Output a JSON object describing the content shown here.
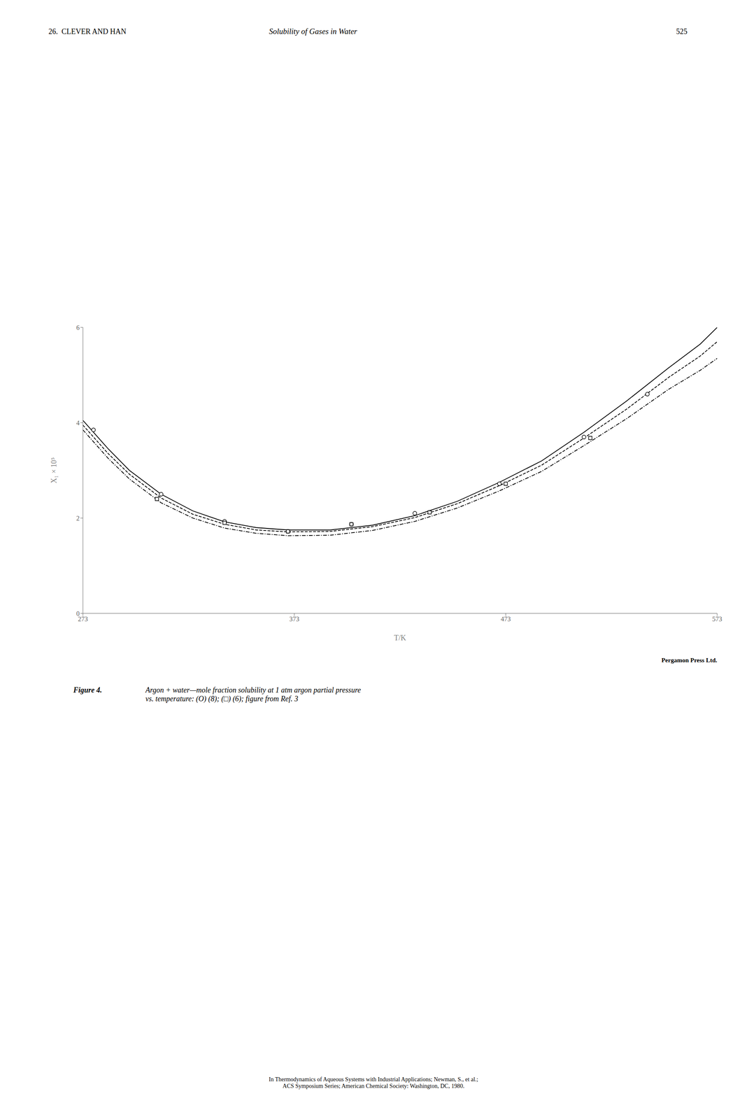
{
  "chart_data": {
    "type": "line",
    "title": "Solubility of Gases in Water",
    "x_label": "T/K",
    "y_label": "X₁ × 10⁵",
    "xlim": [
      273,
      573
    ],
    "ylim": [
      0,
      6
    ],
    "xticks": [
      273,
      373,
      473,
      573
    ],
    "yticks": [
      0,
      2,
      4,
      6
    ],
    "grid": false,
    "series": [
      {
        "type": "line",
        "line_style": "solid",
        "color": "#000000",
        "x": [
          273,
          285,
          295,
          310,
          325,
          340,
          355,
          370,
          390,
          410,
          430,
          450,
          470,
          490,
          510,
          530,
          550,
          565,
          573
        ],
        "values": [
          4.05,
          3.45,
          3.0,
          2.5,
          2.15,
          1.92,
          1.8,
          1.75,
          1.75,
          1.85,
          2.05,
          2.35,
          2.75,
          3.2,
          3.8,
          4.45,
          5.15,
          5.65,
          6.0
        ]
      },
      {
        "type": "line",
        "line_style": "dashed",
        "color": "#000000",
        "x": [
          273,
          285,
          295,
          310,
          325,
          340,
          355,
          370,
          390,
          410,
          430,
          450,
          470,
          490,
          510,
          530,
          550,
          565,
          573
        ],
        "values": [
          3.95,
          3.35,
          2.92,
          2.42,
          2.08,
          1.87,
          1.75,
          1.71,
          1.72,
          1.82,
          2.01,
          2.3,
          2.68,
          3.11,
          3.68,
          4.28,
          4.95,
          5.4,
          5.7
        ]
      },
      {
        "type": "line",
        "line_style": "dashdot",
        "color": "#000000",
        "x": [
          273,
          285,
          295,
          310,
          325,
          340,
          355,
          370,
          390,
          410,
          430,
          450,
          470,
          490,
          510,
          530,
          550,
          565,
          573
        ],
        "values": [
          3.85,
          3.25,
          2.82,
          2.32,
          2.0,
          1.79,
          1.68,
          1.63,
          1.64,
          1.74,
          1.93,
          2.21,
          2.57,
          2.98,
          3.52,
          4.08,
          4.7,
          5.1,
          5.35
        ]
      },
      {
        "type": "scatter",
        "marker": "circle",
        "color": "#000000",
        "x": [
          278,
          310,
          340,
          370,
          400,
          430,
          470,
          510,
          540
        ],
        "values": [
          3.85,
          2.5,
          1.93,
          1.72,
          1.87,
          2.1,
          2.72,
          3.7,
          4.6
        ]
      },
      {
        "type": "scatter",
        "marker": "square",
        "color": "#000000",
        "x": [
          308,
          340,
          370,
          400,
          437,
          473,
          513
        ],
        "values": [
          2.4,
          1.9,
          1.72,
          1.87,
          2.12,
          2.72,
          3.68
        ]
      }
    ],
    "annotations": [
      "26.  CLEVER AND HAN",
      "525",
      "Pergamon Press Ltd.",
      "Figure 4.",
      "Argon + water—mole fraction solubility at 1 atm argon partial pressure\nvs. temperature: (O) (8); (□) (6); figure from Ref. 3",
      "In Thermodynamics of Aqueous Systems with Industrial Applications; Newman, S., et al.;\nACS Symposium Series; American Chemical Society: Washington, DC, 1980."
    ]
  }
}
